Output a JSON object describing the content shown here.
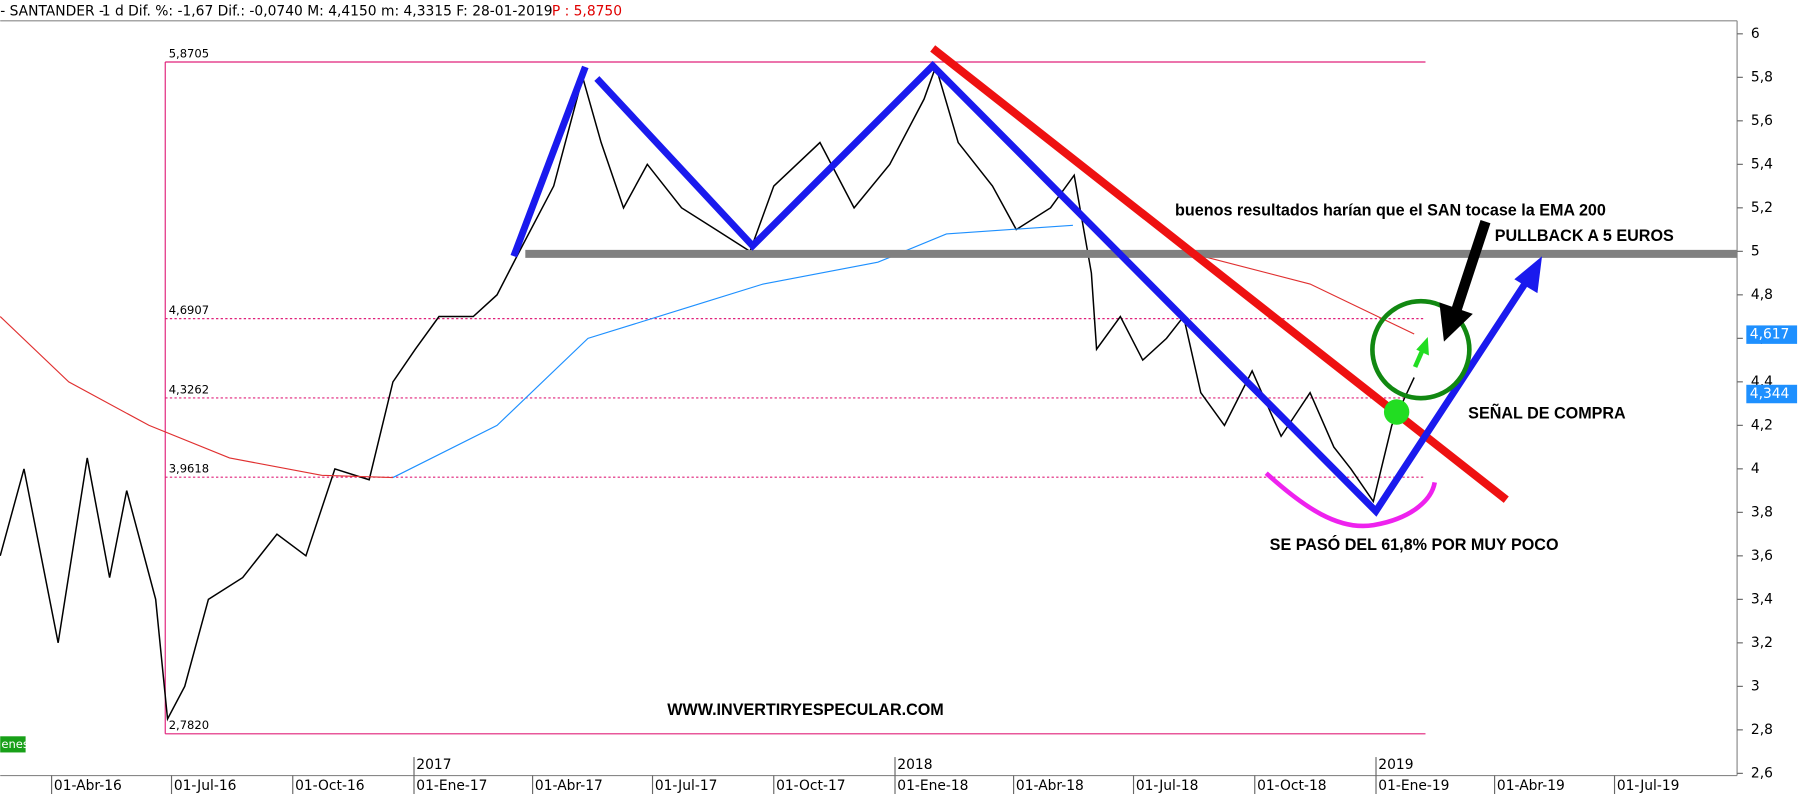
{
  "header": {
    "symbol": "- SANTANDER -",
    "fields": "1 d Dif. %: -1,67 Dif.: -0,0740 M: 4,4150 m: 4,3315 F: 28-01-2019",
    "price": "P : 5,8750"
  },
  "indicator_tag": "enes",
  "annotations": {
    "ema_note": "buenos resultados harían que el SAN tocase la EMA 200",
    "pullback": "PULLBACK A 5 EUROS",
    "signal": "SEÑAL DE COMPRA",
    "fib_note": "SE PASÓ DEL 61,8% POR MUY POCO",
    "website": "WWW.INVERTIRYESPECULAR.COM"
  },
  "chart_data": {
    "type": "line",
    "xlim": [
      "2016-02-22",
      "2019-10-02"
    ],
    "ylim": [
      2.59,
      6.06
    ],
    "yticks": [
      {
        "value": 2.6,
        "label": "2,6"
      },
      {
        "value": 2.8,
        "label": "2,8"
      },
      3,
      {
        "value": 3.2,
        "label": "3,2"
      },
      {
        "value": 3.4,
        "label": "3,4"
      },
      {
        "value": 3.6,
        "label": "3,6"
      },
      {
        "value": 3.8,
        "label": "3,8"
      },
      4,
      {
        "value": 4.2,
        "label": "4,2"
      },
      {
        "value": 4.4,
        "label": "4,4"
      },
      {
        "value": 4.6,
        "label": "4,6"
      },
      {
        "value": 4.8,
        "label": "4,8"
      },
      5,
      {
        "value": 5.2,
        "label": "5,2"
      },
      {
        "value": 5.4,
        "label": "5,4"
      },
      {
        "value": 5.6,
        "label": "5,6"
      },
      {
        "value": 5.8,
        "label": "5,8"
      },
      6
    ],
    "xticks": [
      {
        "value": "2016-04-01",
        "label": "01-Abr-16"
      },
      {
        "value": "2016-07-01",
        "label": "01-Jul-16"
      },
      {
        "value": "2016-10-01",
        "label": "01-Oct-16"
      },
      {
        "value": "2017-01-01",
        "label": "01-Ene-17"
      },
      {
        "value": "2017-04-01",
        "label": "01-Abr-17"
      },
      {
        "value": "2017-07-01",
        "label": "01-Jul-17"
      },
      {
        "value": "2017-10-01",
        "label": "01-Oct-17"
      },
      {
        "value": "2018-01-01",
        "label": "01-Ene-18"
      },
      {
        "value": "2018-04-01",
        "label": "01-Abr-18"
      },
      {
        "value": "2018-07-01",
        "label": "01-Jul-18"
      },
      {
        "value": "2018-10-01",
        "label": "01-Oct-18"
      },
      {
        "value": "2019-01-01",
        "label": "01-Ene-19"
      },
      {
        "value": "2019-04-01",
        "label": "01-Abr-19"
      },
      {
        "value": "2019-07-01",
        "label": "01-Jul-19"
      }
    ],
    "year_labels": [
      {
        "value": "2017-01-01",
        "label": "2017"
      },
      {
        "value": "2018-01-01",
        "label": "2018"
      },
      {
        "value": "2019-01-01",
        "label": "2019"
      }
    ],
    "fib_levels": [
      {
        "value": 5.8705,
        "label": "5,8705"
      },
      {
        "value": 4.6907,
        "label": "4,6907"
      },
      {
        "value": 4.3262,
        "label": "4,3262"
      },
      {
        "value": 3.9618,
        "label": "3,9618"
      },
      {
        "value": 2.782,
        "label": "2,7820"
      }
    ],
    "price_tags": [
      {
        "value": 4.617,
        "label": "4,617",
        "color": "#1e90ff"
      },
      {
        "value": 4.344,
        "label": "4,344",
        "color": "#1e90ff"
      }
    ],
    "series": [
      {
        "color": "#000000",
        "x": [
          "2016-02-22",
          "2016-03-11",
          "2016-04-06",
          "2016-04-28",
          "2016-05-15",
          "2016-05-28",
          "2016-06-19",
          "2016-06-28",
          "2016-07-11",
          "2016-07-29",
          "2016-08-24",
          "2016-09-19",
          "2016-10-11",
          "2016-11-02",
          "2016-11-28",
          "2016-12-16",
          "2017-01-02",
          "2017-01-20",
          "2017-02-15",
          "2017-03-05",
          "2017-03-22",
          "2017-04-17",
          "2017-05-09",
          "2017-05-23",
          "2017-06-09",
          "2017-06-27",
          "2017-07-23",
          "2017-08-18",
          "2017-09-13",
          "2017-10-01",
          "2017-11-05",
          "2017-12-01",
          "2017-12-28",
          "2018-01-23",
          "2018-02-01",
          "2018-02-18",
          "2018-03-16",
          "2018-04-03",
          "2018-04-29",
          "2018-05-17",
          "2018-05-30",
          "2018-06-03",
          "2018-06-21",
          "2018-07-08",
          "2018-07-26",
          "2018-08-08",
          "2018-08-21",
          "2018-09-08",
          "2018-09-29",
          "2018-10-21",
          "2018-11-12",
          "2018-11-30",
          "2018-12-13",
          "2018-12-30",
          "2019-01-13",
          "2019-01-30"
        ],
        "values": [
          3.6,
          4.0,
          3.2,
          4.05,
          3.5,
          3.9,
          3.4,
          2.85,
          3.0,
          3.4,
          3.5,
          3.7,
          3.6,
          4.0,
          3.95,
          4.4,
          4.55,
          4.7,
          4.7,
          4.8,
          5.0,
          5.3,
          5.8,
          5.5,
          5.2,
          5.4,
          5.2,
          5.1,
          5.0,
          5.3,
          5.5,
          5.2,
          5.4,
          5.7,
          5.85,
          5.5,
          5.3,
          5.1,
          5.2,
          5.35,
          4.9,
          4.55,
          4.7,
          4.5,
          4.6,
          4.7,
          4.35,
          4.2,
          4.45,
          4.15,
          4.35,
          4.1,
          4.0,
          3.85,
          4.2,
          4.42
        ]
      },
      {
        "color": "#1e90ff",
        "x": [
          "2016-12-16",
          "2017-03-05",
          "2017-05-13",
          "2017-08-01",
          "2017-09-23",
          "2017-12-19",
          "2018-02-09",
          "2018-05-16"
        ],
        "values": [
          3.96,
          4.2,
          4.6,
          4.75,
          4.85,
          4.95,
          5.08,
          5.12
        ]
      },
      {
        "color": "#e03030",
        "x": [
          "2016-02-22",
          "2016-04-14",
          "2016-06-14",
          "2016-08-14",
          "2016-10-23",
          "2016-12-16",
          "2018-05-16",
          "2018-08-08",
          "2018-11-12",
          "2019-01-30"
        ],
        "values": [
          4.7,
          4.4,
          4.2,
          4.05,
          3.97,
          3.96,
          null,
          5.0,
          4.85,
          4.62
        ]
      }
    ]
  }
}
